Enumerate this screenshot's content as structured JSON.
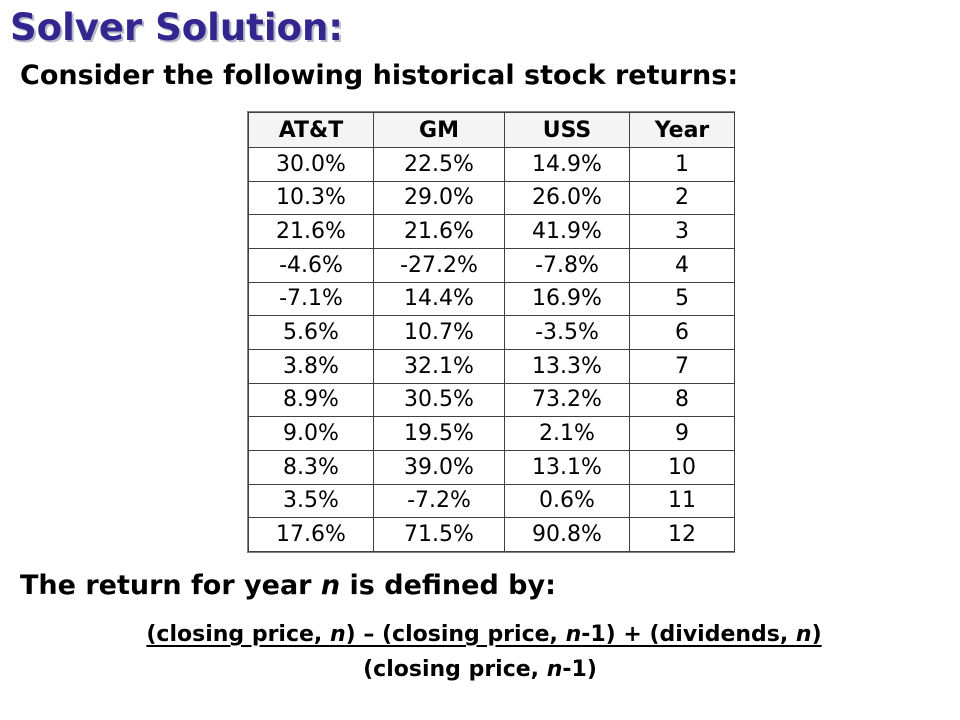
{
  "title": "Solver Solution:",
  "subtitle": "Consider the following historical stock returns:",
  "table": {
    "headers": [
      "AT&T",
      "GM",
      "USS",
      "Year"
    ],
    "rows": [
      [
        "30.0%",
        "22.5%",
        "14.9%",
        "1"
      ],
      [
        "10.3%",
        "29.0%",
        "26.0%",
        "2"
      ],
      [
        "21.6%",
        "21.6%",
        "41.9%",
        "3"
      ],
      [
        "-4.6%",
        "-27.2%",
        "-7.8%",
        "4"
      ],
      [
        "-7.1%",
        "14.4%",
        "16.9%",
        "5"
      ],
      [
        "5.6%",
        "10.7%",
        "-3.5%",
        "6"
      ],
      [
        "3.8%",
        "32.1%",
        "13.3%",
        "7"
      ],
      [
        "8.9%",
        "30.5%",
        "73.2%",
        "8"
      ],
      [
        "9.0%",
        "19.5%",
        "2.1%",
        "9"
      ],
      [
        "8.3%",
        "39.0%",
        "13.1%",
        "10"
      ],
      [
        "3.5%",
        "-7.2%",
        "0.6%",
        "11"
      ],
      [
        "17.6%",
        "71.5%",
        "90.8%",
        "12"
      ]
    ]
  },
  "definition": {
    "prefix": "The return for year ",
    "var": "n",
    "suffix": " is defined by:"
  },
  "formula": {
    "numerator": {
      "p1": "(closing price, ",
      "v1": "n",
      "p2": ") – (closing price, ",
      "v2": "n",
      "p3": "-1) + (dividends, ",
      "v3": "n",
      "p4": ")"
    },
    "denominator": {
      "p1": "(closing price, ",
      "v1": "n",
      "p2": "-1)"
    }
  }
}
